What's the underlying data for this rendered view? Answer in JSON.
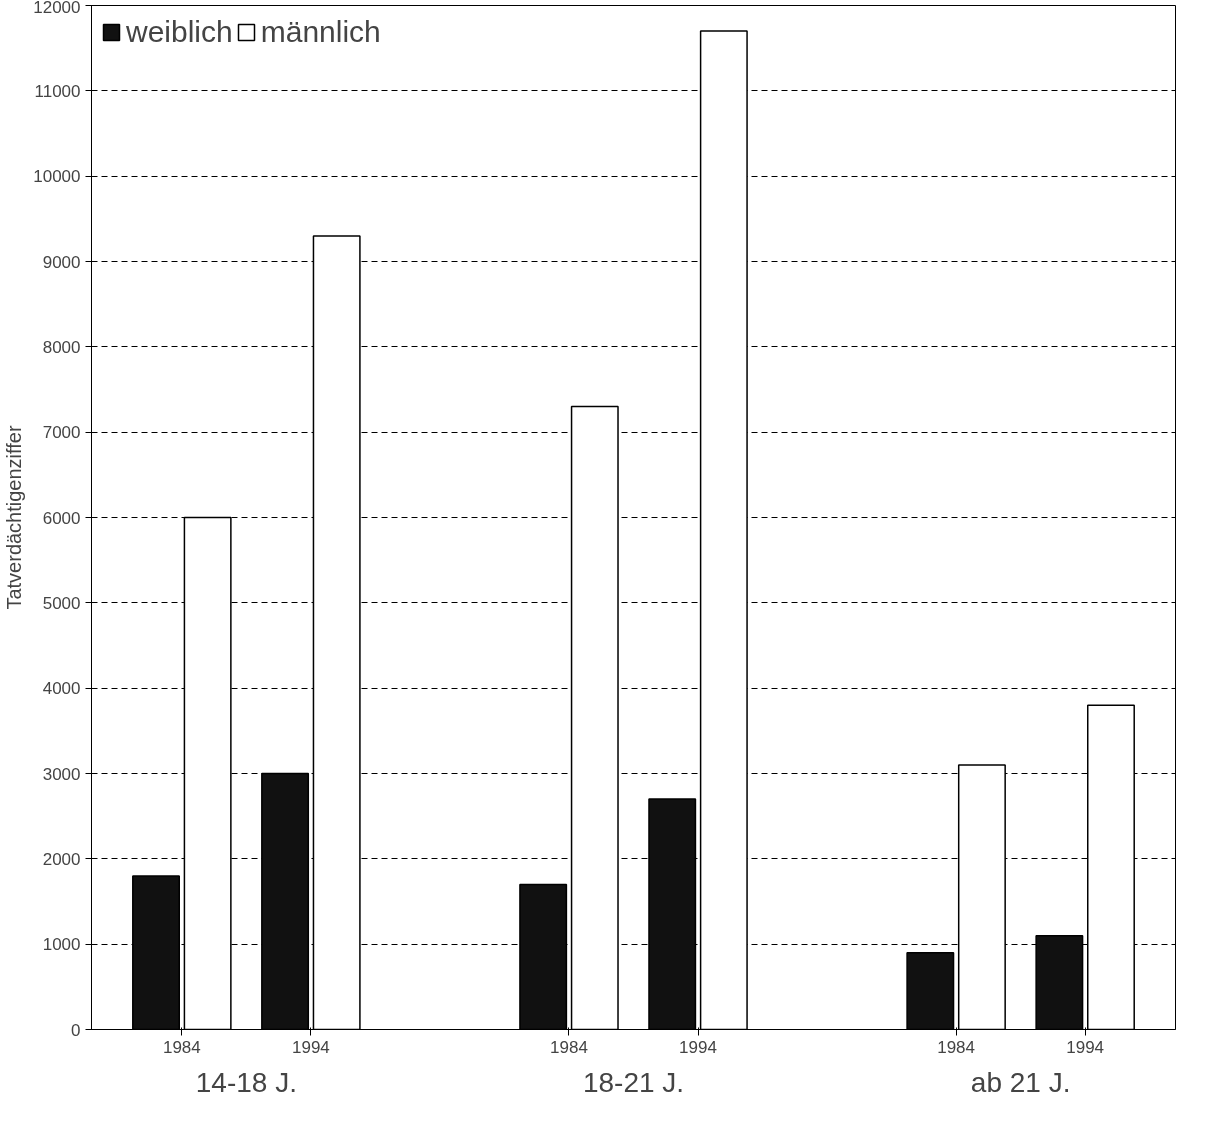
{
  "chart_data": {
    "type": "bar",
    "ylabel": "Tatverdächtigenziffer",
    "categories": [
      "1984",
      "1994",
      "1984",
      "1994",
      "1984",
      "1994"
    ],
    "series": [
      {
        "name": "weiblich",
        "color": "#111111",
        "values": [
          1800,
          3000,
          1700,
          2700,
          900,
          1100
        ]
      },
      {
        "name": "männlich",
        "color": "#ffffff",
        "values": [
          6000,
          9300,
          7300,
          11700,
          3100,
          3800
        ]
      }
    ],
    "annotations": [
      "14-18 J.",
      "18-21 J.",
      "ab 21 J."
    ],
    "ylim": [
      0,
      12000
    ],
    "yticks": [
      0,
      1000,
      2000,
      3000,
      4000,
      5000,
      6000,
      7000,
      8000,
      9000,
      10000,
      11000,
      12000
    ],
    "grid": "y",
    "legend": "top left"
  }
}
